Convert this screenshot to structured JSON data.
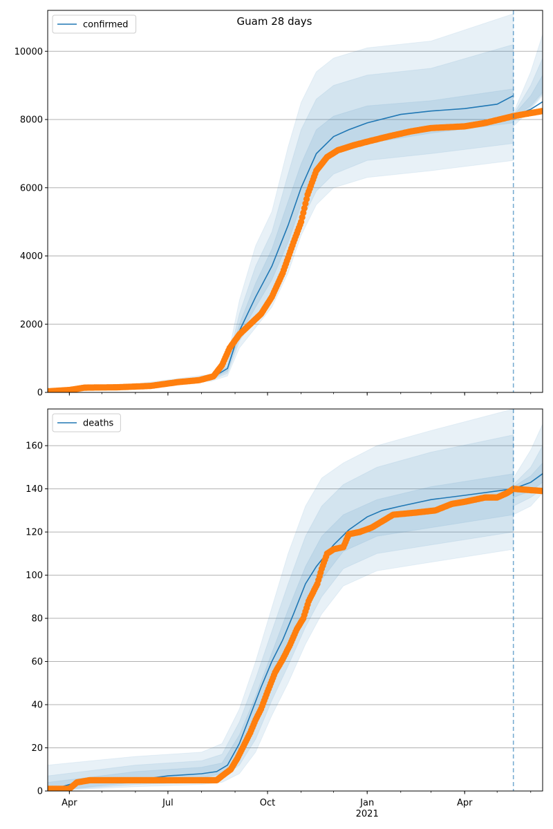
{
  "chart_data": [
    {
      "type": "line",
      "title": "Guam 28 days",
      "series_name": "confirmed",
      "xlim": [
        "2020-03-12",
        "2021-06-12"
      ],
      "ylim": [
        0,
        11200
      ],
      "yticks": [
        0,
        2000,
        4000,
        6000,
        8000,
        10000
      ],
      "xtick_labels": [
        {
          "date": "2020-04-01",
          "label": "Apr"
        },
        {
          "date": "2020-07-01",
          "label": "Jul"
        },
        {
          "date": "2020-10-01",
          "label": "Oct"
        },
        {
          "date": "2021-01-01",
          "label": "Jan"
        },
        {
          "date": "2021-04-01",
          "label": "Apr"
        }
      ],
      "year_label": "2021",
      "forecast_start": "2021-05-16",
      "grid": "horizontal",
      "legend_position": "upper-left",
      "colors": {
        "model": "#1f77b4",
        "observed": "#ff7f0e",
        "band": "#1f77b4"
      },
      "model": {
        "x": [
          "2020-03-12",
          "2020-04-15",
          "2020-06-01",
          "2020-07-15",
          "2020-08-10",
          "2020-08-25",
          "2020-09-05",
          "2020-09-20",
          "2020-10-05",
          "2020-10-20",
          "2020-11-01",
          "2020-11-15",
          "2020-12-01",
          "2020-12-15",
          "2021-01-01",
          "2021-02-01",
          "2021-03-01",
          "2021-04-01",
          "2021-05-01",
          "2021-05-16"
        ],
        "y": [
          30,
          130,
          190,
          310,
          420,
          700,
          1800,
          2800,
          3700,
          4900,
          6000,
          7000,
          7500,
          7700,
          7900,
          8150,
          8250,
          8320,
          8450,
          8700
        ]
      },
      "forecast": {
        "x": [
          "2021-05-16",
          "2021-06-01",
          "2021-06-12"
        ],
        "y": [
          8100,
          8300,
          8520
        ]
      },
      "bands": [
        {
          "x": [
            "2020-03-12",
            "2020-06-01",
            "2020-08-10",
            "2020-08-25",
            "2020-09-05",
            "2020-09-20",
            "2020-10-05",
            "2020-10-20",
            "2020-11-01",
            "2020-11-15",
            "2020-12-01",
            "2021-01-01",
            "2021-03-01",
            "2021-05-16"
          ],
          "lower": [
            0,
            140,
            330,
            480,
            1300,
            1900,
            2500,
            3500,
            4600,
            5500,
            6000,
            6300,
            6500,
            6800
          ],
          "upper": [
            120,
            250,
            530,
            1000,
            2700,
            4300,
            5300,
            7200,
            8500,
            9400,
            9800,
            10100,
            10300,
            11100
          ]
        },
        {
          "x": [
            "2020-03-12",
            "2020-06-01",
            "2020-08-10",
            "2020-08-25",
            "2020-09-05",
            "2020-09-20",
            "2020-10-05",
            "2020-10-20",
            "2020-11-01",
            "2020-11-15",
            "2020-12-01",
            "2021-01-01",
            "2021-03-01",
            "2021-05-16"
          ],
          "lower": [
            5,
            160,
            360,
            560,
            1500,
            2200,
            2900,
            3900,
            5000,
            5900,
            6400,
            6800,
            7000,
            7300
          ],
          "upper": [
            80,
            220,
            480,
            850,
            2300,
            3700,
            4700,
            6400,
            7700,
            8600,
            9000,
            9300,
            9500,
            10200
          ]
        },
        {
          "x": [
            "2020-03-12",
            "2020-06-01",
            "2020-08-10",
            "2020-08-25",
            "2020-09-05",
            "2020-09-20",
            "2020-10-05",
            "2020-10-20",
            "2020-11-01",
            "2020-11-15",
            "2020-12-01",
            "2021-01-01",
            "2021-03-01",
            "2021-05-16"
          ],
          "lower": [
            10,
            175,
            390,
            620,
            1650,
            2500,
            3300,
            4400,
            5500,
            6500,
            7000,
            7300,
            7600,
            7900
          ],
          "upper": [
            60,
            205,
            450,
            760,
            2000,
            3200,
            4200,
            5600,
            6700,
            7700,
            8100,
            8400,
            8550,
            8900
          ]
        }
      ],
      "forecast_bands": [
        {
          "x": [
            "2021-05-16",
            "2021-06-01",
            "2021-06-12"
          ],
          "lower": [
            7800,
            8300,
            8700
          ],
          "upper": [
            8200,
            9400,
            10500
          ]
        },
        {
          "x": [
            "2021-05-16",
            "2021-06-01",
            "2021-06-12"
          ],
          "lower": [
            7950,
            8350,
            8750
          ],
          "upper": [
            8150,
            9000,
            9800
          ]
        },
        {
          "x": [
            "2021-05-16",
            "2021-06-01",
            "2021-06-12"
          ],
          "lower": [
            8050,
            8400,
            8800
          ],
          "upper": [
            8120,
            8700,
            9300
          ]
        }
      ],
      "observed": {
        "x": [
          "2020-03-12",
          "2020-04-01",
          "2020-04-15",
          "2020-05-15",
          "2020-06-15",
          "2020-07-10",
          "2020-07-30",
          "2020-08-12",
          "2020-08-20",
          "2020-08-27",
          "2020-09-05",
          "2020-09-15",
          "2020-09-25",
          "2020-10-05",
          "2020-10-15",
          "2020-10-25",
          "2020-11-01",
          "2020-11-07",
          "2020-11-15",
          "2020-11-25",
          "2020-12-05",
          "2020-12-20",
          "2021-01-01",
          "2021-01-20",
          "2021-02-10",
          "2021-03-01",
          "2021-04-01",
          "2021-04-20",
          "2021-05-16",
          "2021-06-12"
        ],
        "y": [
          30,
          70,
          140,
          150,
          190,
          300,
          360,
          470,
          800,
          1300,
          1700,
          2000,
          2300,
          2800,
          3500,
          4400,
          5000,
          5800,
          6500,
          6900,
          7100,
          7250,
          7350,
          7500,
          7650,
          7750,
          7800,
          7900,
          8100,
          8250
        ]
      }
    },
    {
      "type": "line",
      "series_name": "deaths",
      "xlim": [
        "2020-03-12",
        "2021-06-12"
      ],
      "ylim": [
        0,
        177
      ],
      "yticks": [
        0,
        20,
        40,
        60,
        80,
        100,
        120,
        140,
        160
      ],
      "xtick_labels": [
        {
          "date": "2020-04-01",
          "label": "Apr"
        },
        {
          "date": "2020-07-01",
          "label": "Jul"
        },
        {
          "date": "2020-10-01",
          "label": "Oct"
        },
        {
          "date": "2021-01-01",
          "label": "Jan"
        },
        {
          "date": "2021-04-01",
          "label": "Apr"
        }
      ],
      "year_label": "2021",
      "forecast_start": "2021-05-16",
      "grid": "horizontal",
      "legend_position": "upper-left",
      "colors": {
        "model": "#1f77b4",
        "observed": "#ff7f0e",
        "band": "#1f77b4"
      },
      "model": {
        "x": [
          "2020-03-12",
          "2020-03-25",
          "2020-04-15",
          "2020-06-01",
          "2020-07-01",
          "2020-08-01",
          "2020-08-15",
          "2020-08-25",
          "2020-09-05",
          "2020-09-15",
          "2020-09-25",
          "2020-10-05",
          "2020-10-15",
          "2020-10-25",
          "2020-11-05",
          "2020-11-15",
          "2020-12-01",
          "2020-12-15",
          "2021-01-01",
          "2021-01-15",
          "2021-02-01",
          "2021-03-01",
          "2021-04-01",
          "2021-05-16"
        ],
        "y": [
          1,
          2,
          5,
          5,
          7,
          8,
          9,
          12,
          22,
          35,
          48,
          60,
          70,
          82,
          96,
          104,
          114,
          121,
          127,
          130,
          132,
          135,
          137,
          140
        ]
      },
      "forecast": {
        "x": [
          "2021-05-16",
          "2021-06-01",
          "2021-06-12"
        ],
        "y": [
          140,
          143,
          147
        ]
      },
      "bands": [
        {
          "x": [
            "2020-03-12",
            "2020-06-01",
            "2020-08-01",
            "2020-08-20",
            "2020-09-05",
            "2020-09-20",
            "2020-10-05",
            "2020-10-20",
            "2020-11-05",
            "2020-11-20",
            "2020-12-10",
            "2021-01-10",
            "2021-03-01",
            "2021-05-16"
          ],
          "lower": [
            0,
            2,
            3,
            4,
            8,
            18,
            35,
            50,
            68,
            82,
            95,
            102,
            106,
            112
          ],
          "upper": [
            12,
            16,
            18,
            22,
            38,
            60,
            85,
            110,
            132,
            145,
            152,
            160,
            167,
            177
          ]
        },
        {
          "x": [
            "2020-03-12",
            "2020-06-01",
            "2020-08-01",
            "2020-08-20",
            "2020-09-05",
            "2020-09-20",
            "2020-10-05",
            "2020-10-20",
            "2020-11-05",
            "2020-11-20",
            "2020-12-10",
            "2021-01-10",
            "2021-03-01",
            "2021-05-16"
          ],
          "lower": [
            0,
            3,
            4,
            6,
            12,
            24,
            42,
            58,
            76,
            90,
            103,
            110,
            114,
            120
          ],
          "upper": [
            7,
            12,
            14,
            17,
            32,
            52,
            74,
            96,
            118,
            132,
            142,
            150,
            157,
            165
          ]
        },
        {
          "x": [
            "2020-03-12",
            "2020-06-01",
            "2020-08-01",
            "2020-08-20",
            "2020-09-05",
            "2020-09-20",
            "2020-10-05",
            "2020-10-20",
            "2020-11-05",
            "2020-11-20",
            "2020-12-10",
            "2021-01-10",
            "2021-03-01",
            "2021-05-16"
          ],
          "lower": [
            0,
            4,
            6,
            8,
            16,
            30,
            50,
            66,
            84,
            98,
            111,
            118,
            122,
            128
          ],
          "upper": [
            4,
            9,
            11,
            13,
            26,
            44,
            64,
            84,
            104,
            118,
            128,
            135,
            141,
            147
          ]
        }
      ],
      "forecast_bands": [
        {
          "x": [
            "2021-05-16",
            "2021-06-01",
            "2021-06-12"
          ],
          "lower": [
            128,
            132,
            138
          ],
          "upper": [
            145,
            158,
            170
          ]
        },
        {
          "x": [
            "2021-05-16",
            "2021-06-01",
            "2021-06-12"
          ],
          "lower": [
            132,
            136,
            140
          ],
          "upper": [
            142,
            150,
            160
          ]
        },
        {
          "x": [
            "2021-05-16",
            "2021-06-01",
            "2021-06-12"
          ],
          "lower": [
            136,
            139,
            143
          ],
          "upper": [
            141,
            146,
            152
          ]
        }
      ],
      "observed": {
        "x": [
          "2020-03-12",
          "2020-04-01",
          "2020-04-08",
          "2020-04-20",
          "2020-06-15",
          "2020-08-15",
          "2020-08-20",
          "2020-08-28",
          "2020-09-03",
          "2020-09-10",
          "2020-09-15",
          "2020-09-20",
          "2020-09-25",
          "2020-10-01",
          "2020-10-08",
          "2020-10-15",
          "2020-10-22",
          "2020-10-28",
          "2020-11-03",
          "2020-11-08",
          "2020-11-12",
          "2020-11-16",
          "2020-11-20",
          "2020-11-25",
          "2020-12-01",
          "2020-12-10",
          "2020-12-15",
          "2020-12-25",
          "2021-01-05",
          "2021-01-15",
          "2021-01-25",
          "2021-02-15",
          "2021-03-05",
          "2021-03-20",
          "2021-04-01",
          "2021-04-20",
          "2021-05-01",
          "2021-05-10",
          "2021-05-16",
          "2021-06-12"
        ],
        "y": [
          1,
          1,
          4,
          5,
          5,
          5,
          7,
          10,
          15,
          22,
          27,
          33,
          38,
          46,
          55,
          61,
          68,
          75,
          80,
          88,
          92,
          96,
          103,
          110,
          112,
          113,
          119,
          120,
          122,
          125,
          128,
          129,
          130,
          133,
          134,
          136,
          136,
          138,
          140,
          139
        ]
      }
    }
  ]
}
